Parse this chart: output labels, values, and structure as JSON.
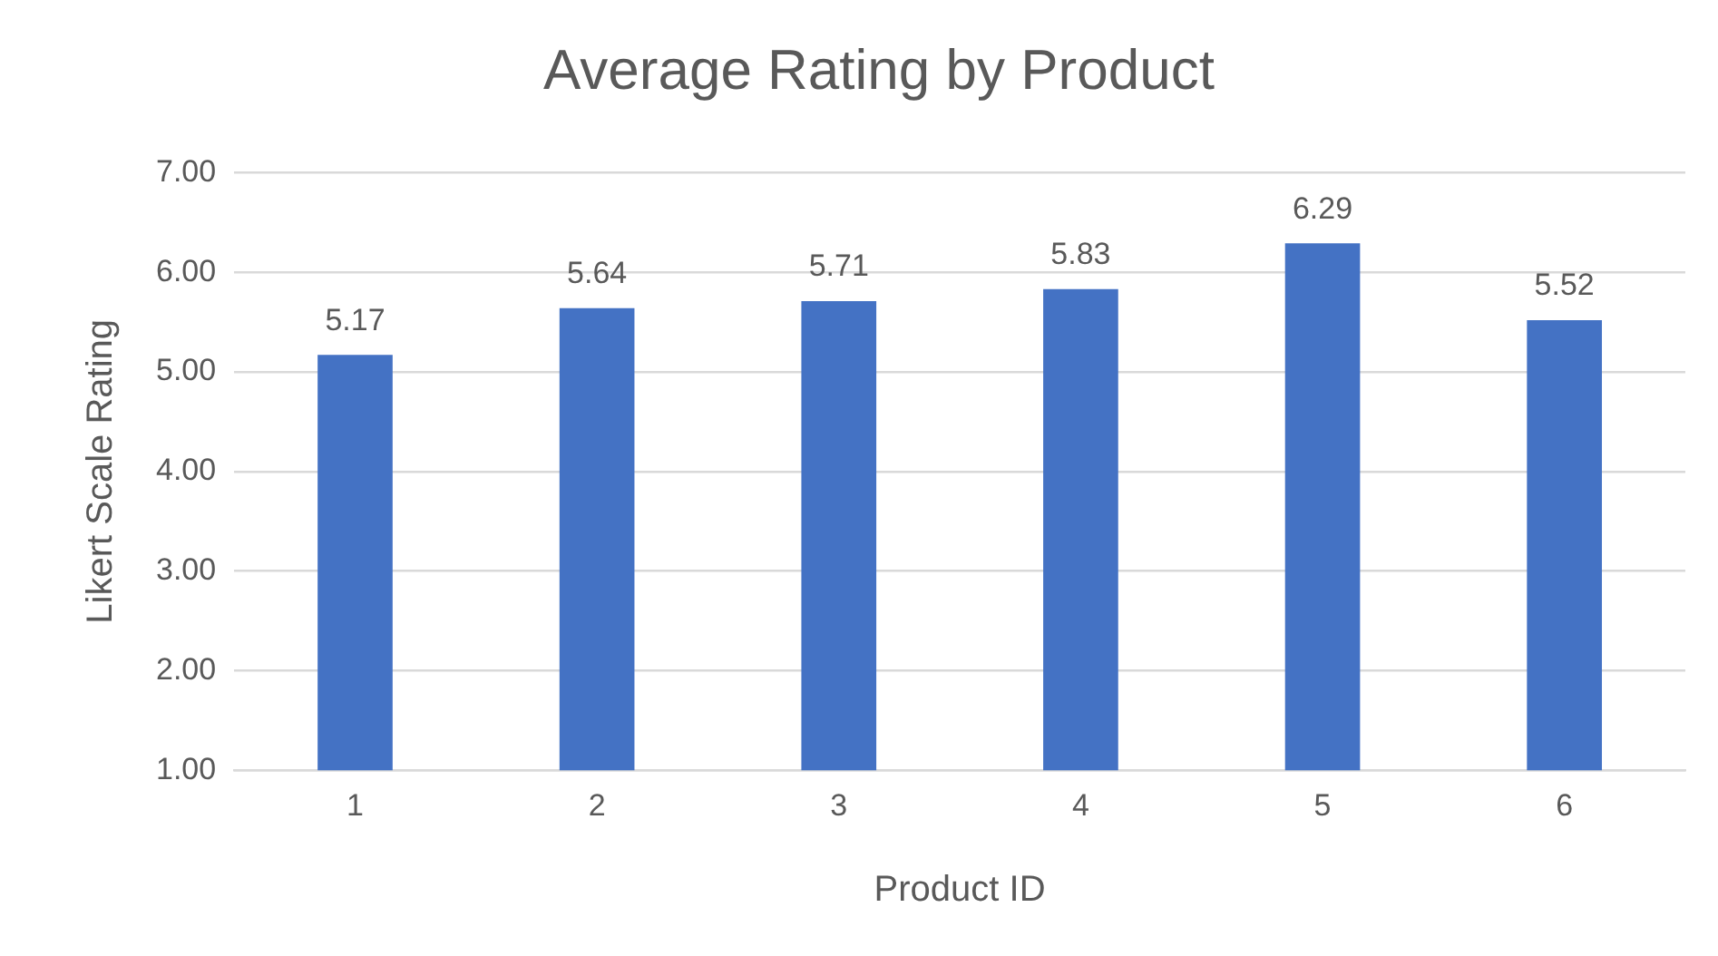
{
  "chart_data": {
    "type": "bar",
    "title": "Average Rating by Product",
    "xlabel": "Product ID",
    "ylabel": "Likert Scale Rating",
    "categories": [
      "1",
      "2",
      "3",
      "4",
      "5",
      "6"
    ],
    "values": [
      5.17,
      5.64,
      5.71,
      5.83,
      6.29,
      5.52
    ],
    "color": "#4472c4",
    "ylim": [
      1,
      7
    ],
    "yticks": [
      {
        "value": 1,
        "label": "1.00"
      },
      {
        "value": 2,
        "label": "2.00"
      },
      {
        "value": 3,
        "label": "3.00"
      },
      {
        "value": 4,
        "label": "4.00"
      },
      {
        "value": 5,
        "label": "5.00"
      },
      {
        "value": 6,
        "label": "6.00"
      },
      {
        "value": 7,
        "label": "7.00"
      }
    ],
    "grid": "y",
    "legend": false,
    "data_labels": true
  }
}
